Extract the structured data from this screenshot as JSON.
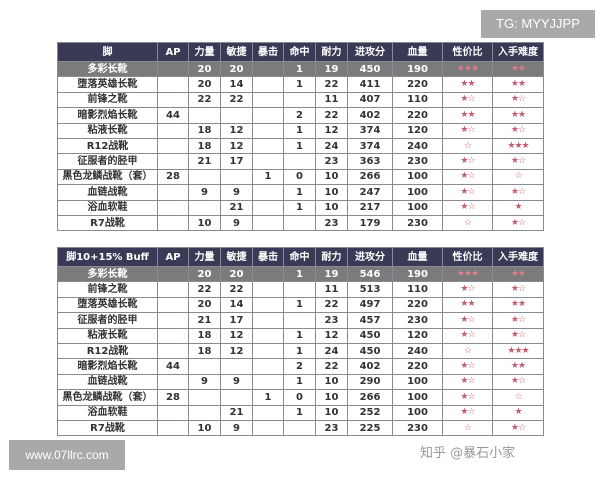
{
  "watermarks": {
    "tg": "TG: MYYJJPP",
    "site": "www.07llrc.com",
    "zhihu": "知乎 @暴石小家"
  },
  "colors": {
    "header_bg": "#393a55",
    "highlight_bg": "#7b7b7b",
    "star": "#c85a6e"
  },
  "tables": [
    {
      "headers": [
        "脚",
        "AP",
        "力量",
        "敏捷",
        "暴击",
        "命中",
        "耐力",
        "进攻分",
        "血量",
        "性价比",
        "入手难度"
      ],
      "rows": [
        [
          "多彩长靴",
          "",
          "20",
          "20",
          "",
          "1",
          "19",
          "450",
          "190",
          "★★★",
          "★★"
        ],
        [
          "堕落英雄长靴",
          "",
          "20",
          "14",
          "",
          "1",
          "22",
          "411",
          "220",
          "★★",
          "★★"
        ],
        [
          "前锋之靴",
          "",
          "22",
          "22",
          "",
          "",
          "11",
          "407",
          "110",
          "★☆",
          "★☆"
        ],
        [
          "暗影烈焰长靴",
          "44",
          "",
          "",
          "",
          "2",
          "22",
          "402",
          "220",
          "★★",
          "★★"
        ],
        [
          "粘液长靴",
          "",
          "18",
          "12",
          "",
          "1",
          "12",
          "374",
          "120",
          "★☆",
          "★☆"
        ],
        [
          "R12战靴",
          "",
          "18",
          "12",
          "",
          "1",
          "24",
          "374",
          "240",
          "☆",
          "★★★"
        ],
        [
          "征服者的胫甲",
          "",
          "21",
          "17",
          "",
          "",
          "23",
          "363",
          "230",
          "★☆",
          "★☆"
        ],
        [
          "黑色龙鳞战靴（套）",
          "28",
          "",
          "",
          "1",
          "0",
          "10",
          "266",
          "100",
          "★☆",
          "☆"
        ],
        [
          "血链战靴",
          "",
          "9",
          "9",
          "",
          "1",
          "10",
          "247",
          "100",
          "★☆",
          "★☆"
        ],
        [
          "浴血软鞋",
          "",
          "",
          "21",
          "",
          "1",
          "10",
          "217",
          "100",
          "★☆",
          "★"
        ],
        [
          "R7战靴",
          "",
          "10",
          "9",
          "",
          "",
          "23",
          "179",
          "230",
          "☆",
          "★☆"
        ]
      ]
    },
    {
      "headers": [
        "脚10+15% Buff",
        "AP",
        "力量",
        "敏捷",
        "暴击",
        "命中",
        "耐力",
        "进攻分",
        "血量",
        "性价比",
        "入手难度"
      ],
      "rows": [
        [
          "多彩长靴",
          "",
          "20",
          "20",
          "",
          "1",
          "19",
          "546",
          "190",
          "★★★",
          "★★"
        ],
        [
          "前锋之靴",
          "",
          "22",
          "22",
          "",
          "",
          "11",
          "513",
          "110",
          "★☆",
          "★☆"
        ],
        [
          "堕落英雄长靴",
          "",
          "20",
          "14",
          "",
          "1",
          "22",
          "497",
          "220",
          "★★",
          "★★"
        ],
        [
          "征服者的胫甲",
          "",
          "21",
          "17",
          "",
          "",
          "23",
          "457",
          "230",
          "★☆",
          "★☆"
        ],
        [
          "粘液长靴",
          "",
          "18",
          "12",
          "",
          "1",
          "12",
          "450",
          "120",
          "★☆",
          "★☆"
        ],
        [
          "R12战靴",
          "",
          "18",
          "12",
          "",
          "1",
          "24",
          "450",
          "240",
          "☆",
          "★★★"
        ],
        [
          "暗影烈焰长靴",
          "44",
          "",
          "",
          "",
          "2",
          "22",
          "402",
          "220",
          "★☆",
          "★★"
        ],
        [
          "血链战靴",
          "",
          "9",
          "9",
          "",
          "1",
          "10",
          "290",
          "100",
          "★☆",
          "★☆"
        ],
        [
          "黑色龙鳞战靴（套）",
          "28",
          "",
          "",
          "1",
          "0",
          "10",
          "266",
          "100",
          "★☆",
          "☆"
        ],
        [
          "浴血软鞋",
          "",
          "",
          "21",
          "",
          "1",
          "10",
          "252",
          "100",
          "★☆",
          "★"
        ],
        [
          "R7战靴",
          "",
          "10",
          "9",
          "",
          "",
          "23",
          "225",
          "230",
          "☆",
          "★☆"
        ]
      ]
    }
  ]
}
